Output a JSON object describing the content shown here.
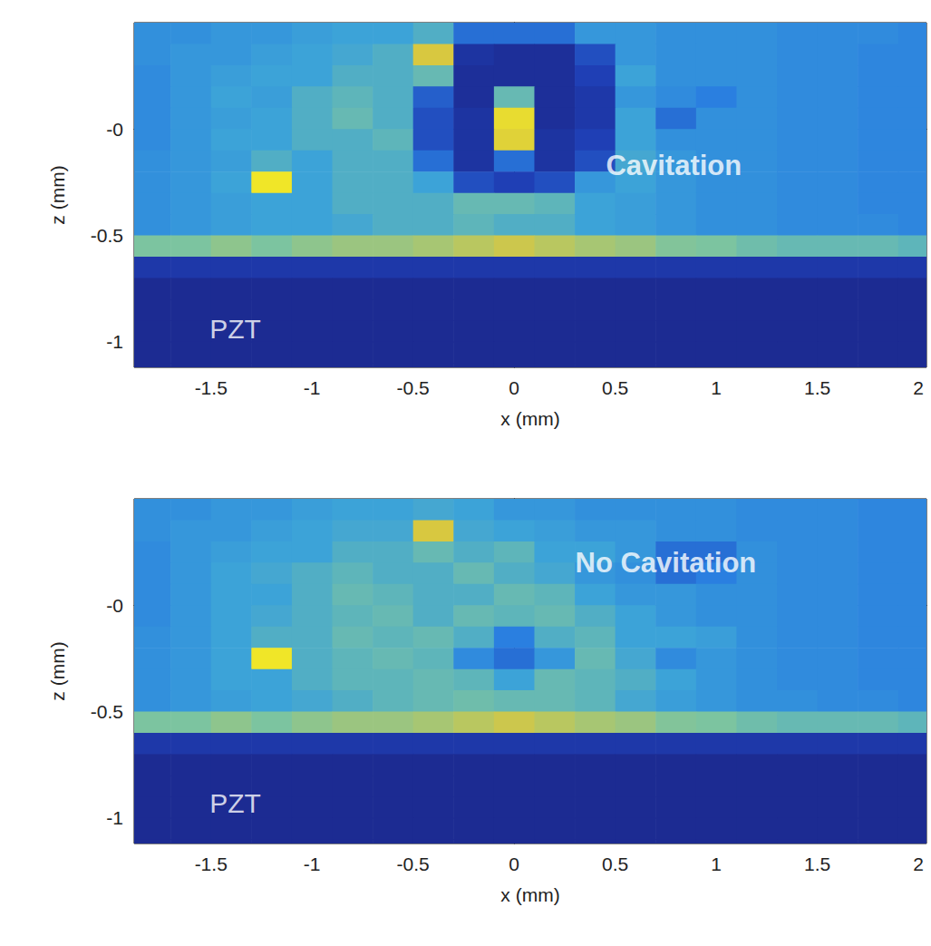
{
  "chart_data": [
    {
      "type": "heatmap",
      "x_label": "x (mm)",
      "y_label": "z (mm)",
      "xlim": [
        -1.88,
        2.04
      ],
      "ylim": [
        -1.12,
        0.5
      ],
      "xticks": [
        -1.5,
        -1,
        -0.5,
        0,
        0.5,
        1,
        1.5,
        2
      ],
      "yticks": [
        {
          "value": 0,
          "label": "-0"
        },
        -0.5,
        -1
      ],
      "annotation": {
        "text": "Cavitation",
        "x": 0.79,
        "z": -0.17
      },
      "material_label": {
        "text": "PZT",
        "x": -1.38,
        "z": -0.94
      },
      "x": [
        -1.8,
        -1.6,
        -1.4,
        -1.2,
        -1.0,
        -0.8,
        -0.6,
        -0.4,
        -0.2,
        0.0,
        0.2,
        0.4,
        0.6,
        0.8,
        1.0,
        1.2,
        1.4,
        1.6,
        1.8,
        2.0
      ],
      "z": [
        0.45,
        0.35,
        0.25,
        0.15,
        0.05,
        -0.05,
        -0.15,
        -0.25,
        -0.35,
        -0.45,
        -0.55,
        -0.65,
        -0.75,
        -0.85,
        -0.95,
        -1.05,
        -1.15
      ],
      "cells": [
        [
          0.42,
          0.42,
          0.45,
          0.45,
          0.48,
          0.5,
          0.5,
          0.55,
          0.3,
          0.3,
          0.3,
          0.45,
          0.45,
          0.42,
          0.42,
          0.42,
          0.4,
          0.4,
          0.4,
          0.38
        ],
        [
          0.42,
          0.45,
          0.45,
          0.48,
          0.5,
          0.52,
          0.55,
          0.8,
          0.1,
          0.08,
          0.08,
          0.2,
          0.45,
          0.42,
          0.42,
          0.42,
          0.4,
          0.4,
          0.38,
          0.38
        ],
        [
          0.4,
          0.45,
          0.48,
          0.5,
          0.5,
          0.55,
          0.55,
          0.6,
          0.08,
          0.08,
          0.08,
          0.15,
          0.5,
          0.42,
          0.42,
          0.42,
          0.4,
          0.4,
          0.38,
          0.38
        ],
        [
          0.4,
          0.45,
          0.5,
          0.48,
          0.55,
          0.58,
          0.55,
          0.25,
          0.08,
          0.6,
          0.08,
          0.12,
          0.45,
          0.4,
          0.35,
          0.42,
          0.4,
          0.4,
          0.38,
          0.38
        ],
        [
          0.4,
          0.45,
          0.48,
          0.5,
          0.55,
          0.6,
          0.55,
          0.2,
          0.1,
          0.9,
          0.08,
          0.12,
          0.5,
          0.3,
          0.42,
          0.42,
          0.4,
          0.4,
          0.38,
          0.38
        ],
        [
          0.4,
          0.45,
          0.5,
          0.5,
          0.55,
          0.55,
          0.58,
          0.2,
          0.1,
          0.85,
          0.1,
          0.15,
          0.5,
          0.42,
          0.42,
          0.42,
          0.4,
          0.4,
          0.38,
          0.38
        ],
        [
          0.42,
          0.45,
          0.48,
          0.55,
          0.5,
          0.55,
          0.55,
          0.3,
          0.1,
          0.3,
          0.1,
          0.2,
          0.52,
          0.45,
          0.42,
          0.42,
          0.4,
          0.4,
          0.38,
          0.38
        ],
        [
          0.42,
          0.45,
          0.5,
          0.95,
          0.5,
          0.55,
          0.55,
          0.5,
          0.2,
          0.15,
          0.2,
          0.45,
          0.5,
          0.45,
          0.42,
          0.42,
          0.4,
          0.4,
          0.38,
          0.38
        ],
        [
          0.42,
          0.45,
          0.48,
          0.5,
          0.5,
          0.55,
          0.55,
          0.55,
          0.6,
          0.6,
          0.58,
          0.5,
          0.48,
          0.45,
          0.42,
          0.42,
          0.4,
          0.4,
          0.38,
          0.38
        ],
        [
          0.42,
          0.45,
          0.48,
          0.5,
          0.5,
          0.52,
          0.55,
          0.55,
          0.58,
          0.55,
          0.55,
          0.5,
          0.48,
          0.45,
          0.42,
          0.42,
          0.4,
          0.4,
          0.4,
          0.38
        ],
        [
          0.65,
          0.65,
          0.68,
          0.65,
          0.68,
          0.7,
          0.7,
          0.72,
          0.75,
          0.78,
          0.75,
          0.72,
          0.7,
          0.66,
          0.65,
          0.62,
          0.6,
          0.6,
          0.6,
          0.58
        ],
        [
          0.12,
          0.12,
          0.12,
          0.12,
          0.12,
          0.12,
          0.12,
          0.12,
          0.12,
          0.12,
          0.12,
          0.12,
          0.12,
          0.12,
          0.12,
          0.12,
          0.12,
          0.12,
          0.12,
          0.12
        ],
        [
          0.06,
          0.06,
          0.06,
          0.06,
          0.06,
          0.06,
          0.06,
          0.06,
          0.06,
          0.06,
          0.06,
          0.06,
          0.06,
          0.06,
          0.06,
          0.06,
          0.06,
          0.06,
          0.06,
          0.06
        ],
        [
          0.06,
          0.06,
          0.06,
          0.06,
          0.06,
          0.06,
          0.06,
          0.06,
          0.06,
          0.06,
          0.06,
          0.06,
          0.06,
          0.06,
          0.06,
          0.06,
          0.06,
          0.06,
          0.06,
          0.06
        ],
        [
          0.06,
          0.06,
          0.06,
          0.06,
          0.06,
          0.06,
          0.06,
          0.06,
          0.06,
          0.06,
          0.06,
          0.06,
          0.06,
          0.06,
          0.06,
          0.06,
          0.06,
          0.06,
          0.06,
          0.06
        ],
        [
          0.06,
          0.06,
          0.06,
          0.06,
          0.06,
          0.06,
          0.06,
          0.06,
          0.06,
          0.06,
          0.06,
          0.06,
          0.06,
          0.06,
          0.06,
          0.06,
          0.06,
          0.06,
          0.06,
          0.06
        ],
        [
          0.06,
          0.06,
          0.06,
          0.06,
          0.06,
          0.06,
          0.06,
          0.06,
          0.06,
          0.06,
          0.06,
          0.06,
          0.06,
          0.06,
          0.06,
          0.06,
          0.06,
          0.06,
          0.06,
          0.06
        ]
      ]
    },
    {
      "type": "heatmap",
      "x_label": "x (mm)",
      "y_label": "z (mm)",
      "xlim": [
        -1.88,
        2.04
      ],
      "ylim": [
        -1.12,
        0.5
      ],
      "xticks": [
        -1.5,
        -1,
        -0.5,
        0,
        0.5,
        1,
        1.5,
        2
      ],
      "yticks": [
        {
          "value": 0,
          "label": "-0"
        },
        -0.5,
        -1
      ],
      "annotation": {
        "text": "No Cavitation",
        "x": 0.75,
        "z": 0.2
      },
      "material_label": {
        "text": "PZT",
        "x": -1.38,
        "z": -0.93
      },
      "x": [
        -1.8,
        -1.6,
        -1.4,
        -1.2,
        -1.0,
        -0.8,
        -0.6,
        -0.4,
        -0.2,
        0.0,
        0.2,
        0.4,
        0.6,
        0.8,
        1.0,
        1.2,
        1.4,
        1.6,
        1.8,
        2.0
      ],
      "z": [
        0.45,
        0.35,
        0.25,
        0.15,
        0.05,
        -0.05,
        -0.15,
        -0.25,
        -0.35,
        -0.45,
        -0.55,
        -0.65,
        -0.75,
        -0.85,
        -0.95,
        -1.05,
        -1.15
      ],
      "cells": [
        [
          0.42,
          0.42,
          0.45,
          0.45,
          0.48,
          0.5,
          0.5,
          0.52,
          0.5,
          0.45,
          0.45,
          0.42,
          0.42,
          0.42,
          0.42,
          0.4,
          0.4,
          0.4,
          0.38,
          0.38
        ],
        [
          0.42,
          0.45,
          0.45,
          0.48,
          0.5,
          0.52,
          0.52,
          0.8,
          0.52,
          0.5,
          0.48,
          0.45,
          0.45,
          0.42,
          0.42,
          0.4,
          0.4,
          0.4,
          0.38,
          0.38
        ],
        [
          0.4,
          0.45,
          0.48,
          0.5,
          0.5,
          0.55,
          0.55,
          0.6,
          0.55,
          0.58,
          0.5,
          0.5,
          0.45,
          0.3,
          0.3,
          0.42,
          0.4,
          0.4,
          0.38,
          0.38
        ],
        [
          0.4,
          0.45,
          0.5,
          0.52,
          0.55,
          0.58,
          0.55,
          0.55,
          0.6,
          0.55,
          0.52,
          0.45,
          0.42,
          0.3,
          0.35,
          0.42,
          0.4,
          0.4,
          0.38,
          0.38
        ],
        [
          0.4,
          0.45,
          0.5,
          0.5,
          0.55,
          0.6,
          0.58,
          0.55,
          0.55,
          0.6,
          0.58,
          0.5,
          0.45,
          0.45,
          0.42,
          0.42,
          0.4,
          0.4,
          0.38,
          0.38
        ],
        [
          0.4,
          0.45,
          0.5,
          0.52,
          0.55,
          0.58,
          0.6,
          0.55,
          0.6,
          0.58,
          0.6,
          0.55,
          0.5,
          0.45,
          0.42,
          0.42,
          0.4,
          0.4,
          0.38,
          0.38
        ],
        [
          0.42,
          0.45,
          0.5,
          0.55,
          0.55,
          0.6,
          0.58,
          0.6,
          0.55,
          0.35,
          0.55,
          0.58,
          0.5,
          0.5,
          0.48,
          0.42,
          0.4,
          0.4,
          0.38,
          0.38
        ],
        [
          0.42,
          0.45,
          0.5,
          0.95,
          0.55,
          0.58,
          0.6,
          0.58,
          0.4,
          0.3,
          0.45,
          0.6,
          0.52,
          0.4,
          0.45,
          0.42,
          0.4,
          0.4,
          0.38,
          0.38
        ],
        [
          0.42,
          0.45,
          0.5,
          0.5,
          0.55,
          0.58,
          0.58,
          0.6,
          0.58,
          0.5,
          0.6,
          0.58,
          0.55,
          0.5,
          0.45,
          0.42,
          0.4,
          0.4,
          0.38,
          0.38
        ],
        [
          0.42,
          0.45,
          0.48,
          0.5,
          0.52,
          0.55,
          0.58,
          0.6,
          0.62,
          0.6,
          0.6,
          0.58,
          0.52,
          0.48,
          0.45,
          0.42,
          0.42,
          0.4,
          0.4,
          0.38
        ],
        [
          0.65,
          0.65,
          0.68,
          0.65,
          0.68,
          0.7,
          0.7,
          0.72,
          0.75,
          0.78,
          0.75,
          0.72,
          0.7,
          0.66,
          0.65,
          0.62,
          0.6,
          0.6,
          0.6,
          0.58
        ],
        [
          0.12,
          0.12,
          0.12,
          0.12,
          0.12,
          0.12,
          0.12,
          0.12,
          0.12,
          0.12,
          0.12,
          0.12,
          0.12,
          0.12,
          0.12,
          0.12,
          0.12,
          0.12,
          0.12,
          0.12
        ],
        [
          0.06,
          0.06,
          0.06,
          0.06,
          0.06,
          0.06,
          0.06,
          0.06,
          0.06,
          0.06,
          0.06,
          0.06,
          0.06,
          0.06,
          0.06,
          0.06,
          0.06,
          0.06,
          0.06,
          0.06
        ],
        [
          0.06,
          0.06,
          0.06,
          0.06,
          0.06,
          0.06,
          0.06,
          0.06,
          0.06,
          0.06,
          0.06,
          0.06,
          0.06,
          0.06,
          0.06,
          0.06,
          0.06,
          0.06,
          0.06,
          0.06
        ],
        [
          0.06,
          0.06,
          0.06,
          0.06,
          0.06,
          0.06,
          0.06,
          0.06,
          0.06,
          0.06,
          0.06,
          0.06,
          0.06,
          0.06,
          0.06,
          0.06,
          0.06,
          0.06,
          0.06,
          0.06
        ],
        [
          0.06,
          0.06,
          0.06,
          0.06,
          0.06,
          0.06,
          0.06,
          0.06,
          0.06,
          0.06,
          0.06,
          0.06,
          0.06,
          0.06,
          0.06,
          0.06,
          0.06,
          0.06,
          0.06,
          0.06
        ],
        [
          0.06,
          0.06,
          0.06,
          0.06,
          0.06,
          0.06,
          0.06,
          0.06,
          0.06,
          0.06,
          0.06,
          0.06,
          0.06,
          0.06,
          0.06,
          0.06,
          0.06,
          0.06,
          0.06,
          0.06
        ]
      ]
    }
  ]
}
